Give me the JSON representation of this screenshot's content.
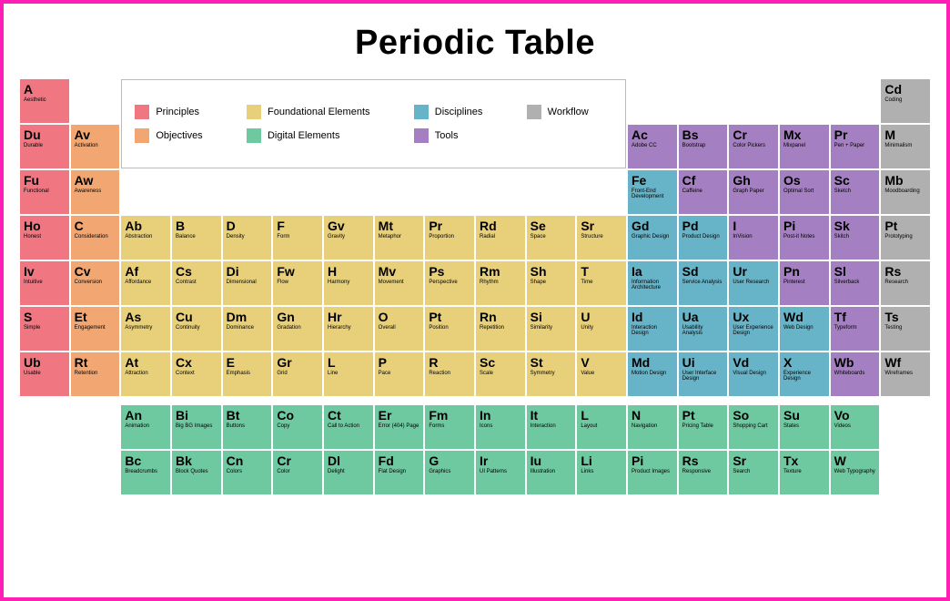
{
  "title": "Periodic Table",
  "colors": {
    "principles": "#f07782",
    "objectives": "#f2a672",
    "foundational": "#e8cf7a",
    "digital": "#6ec9a0",
    "disciplines": "#67b4c9",
    "tools": "#a47fc1",
    "workflow": "#b0b0b0",
    "border": "#ff1fb4",
    "text": "#1a1a1a"
  },
  "legend": [
    {
      "label": "Principles",
      "color_key": "principles"
    },
    {
      "label": "Foundational Elements",
      "color_key": "foundational"
    },
    {
      "label": "Disciplines",
      "color_key": "disciplines"
    },
    {
      "label": "Workflow",
      "color_key": "workflow"
    },
    {
      "label": "Objectives",
      "color_key": "objectives"
    },
    {
      "label": "Digital Elements",
      "color_key": "digital"
    },
    {
      "label": "Tools",
      "color_key": "tools"
    }
  ],
  "main_grid_rows": 7,
  "main_grid_cols": 18,
  "main": [
    {
      "r": 1,
      "c": 1,
      "sym": "A",
      "lbl": "Aesthetic",
      "g": "principles"
    },
    {
      "r": 1,
      "c": 18,
      "sym": "Cd",
      "lbl": "Coding",
      "g": "workflow"
    },
    {
      "r": 2,
      "c": 1,
      "sym": "Du",
      "lbl": "Durable",
      "g": "principles"
    },
    {
      "r": 2,
      "c": 2,
      "sym": "Av",
      "lbl": "Activation",
      "g": "objectives"
    },
    {
      "r": 2,
      "c": 13,
      "sym": "Ac",
      "lbl": "Adobe CC",
      "g": "tools"
    },
    {
      "r": 2,
      "c": 14,
      "sym": "Bs",
      "lbl": "Bootstrap",
      "g": "tools"
    },
    {
      "r": 2,
      "c": 15,
      "sym": "Cr",
      "lbl": "Color Pickers",
      "g": "tools"
    },
    {
      "r": 2,
      "c": 16,
      "sym": "Mx",
      "lbl": "Mixpanel",
      "g": "tools"
    },
    {
      "r": 2,
      "c": 17,
      "sym": "Pr",
      "lbl": "Pen + Paper",
      "g": "tools"
    },
    {
      "r": 2,
      "c": 18,
      "sym": "M",
      "lbl": "Minimalism",
      "g": "workflow"
    },
    {
      "r": 3,
      "c": 1,
      "sym": "Fu",
      "lbl": "Functional",
      "g": "principles"
    },
    {
      "r": 3,
      "c": 2,
      "sym": "Aw",
      "lbl": "Awareness",
      "g": "objectives"
    },
    {
      "r": 3,
      "c": 13,
      "sym": "Fe",
      "lbl": "Front-End Development",
      "g": "disciplines"
    },
    {
      "r": 3,
      "c": 14,
      "sym": "Cf",
      "lbl": "Caffeine",
      "g": "tools"
    },
    {
      "r": 3,
      "c": 15,
      "sym": "Gh",
      "lbl": "Graph Paper",
      "g": "tools"
    },
    {
      "r": 3,
      "c": 16,
      "sym": "Os",
      "lbl": "Optimal Sort",
      "g": "tools"
    },
    {
      "r": 3,
      "c": 17,
      "sym": "Sc",
      "lbl": "Sketch",
      "g": "tools"
    },
    {
      "r": 3,
      "c": 18,
      "sym": "Mb",
      "lbl": "Moodboarding",
      "g": "workflow"
    },
    {
      "r": 4,
      "c": 1,
      "sym": "Ho",
      "lbl": "Honest",
      "g": "principles"
    },
    {
      "r": 4,
      "c": 2,
      "sym": "C",
      "lbl": "Consideration",
      "g": "objectives"
    },
    {
      "r": 4,
      "c": 3,
      "sym": "Ab",
      "lbl": "Abstraction",
      "g": "foundational"
    },
    {
      "r": 4,
      "c": 4,
      "sym": "B",
      "lbl": "Balance",
      "g": "foundational"
    },
    {
      "r": 4,
      "c": 5,
      "sym": "D",
      "lbl": "Density",
      "g": "foundational"
    },
    {
      "r": 4,
      "c": 6,
      "sym": "F",
      "lbl": "Form",
      "g": "foundational"
    },
    {
      "r": 4,
      "c": 7,
      "sym": "Gv",
      "lbl": "Gravity",
      "g": "foundational"
    },
    {
      "r": 4,
      "c": 8,
      "sym": "Mt",
      "lbl": "Metaphor",
      "g": "foundational"
    },
    {
      "r": 4,
      "c": 9,
      "sym": "Pr",
      "lbl": "Proportion",
      "g": "foundational"
    },
    {
      "r": 4,
      "c": 10,
      "sym": "Rd",
      "lbl": "Radial",
      "g": "foundational"
    },
    {
      "r": 4,
      "c": 11,
      "sym": "Se",
      "lbl": "Space",
      "g": "foundational"
    },
    {
      "r": 4,
      "c": 12,
      "sym": "Sr",
      "lbl": "Structure",
      "g": "foundational"
    },
    {
      "r": 4,
      "c": 13,
      "sym": "Gd",
      "lbl": "Graphic Design",
      "g": "disciplines"
    },
    {
      "r": 4,
      "c": 14,
      "sym": "Pd",
      "lbl": "Product Design",
      "g": "disciplines"
    },
    {
      "r": 4,
      "c": 15,
      "sym": "I",
      "lbl": "InVision",
      "g": "tools"
    },
    {
      "r": 4,
      "c": 16,
      "sym": "Pi",
      "lbl": "Post-it Notes",
      "g": "tools"
    },
    {
      "r": 4,
      "c": 17,
      "sym": "Sk",
      "lbl": "Skitch",
      "g": "tools"
    },
    {
      "r": 4,
      "c": 18,
      "sym": "Pt",
      "lbl": "Prototyping",
      "g": "workflow"
    },
    {
      "r": 5,
      "c": 1,
      "sym": "Iv",
      "lbl": "Intuitive",
      "g": "principles"
    },
    {
      "r": 5,
      "c": 2,
      "sym": "Cv",
      "lbl": "Conversion",
      "g": "objectives"
    },
    {
      "r": 5,
      "c": 3,
      "sym": "Af",
      "lbl": "Affordance",
      "g": "foundational"
    },
    {
      "r": 5,
      "c": 4,
      "sym": "Cs",
      "lbl": "Contrast",
      "g": "foundational"
    },
    {
      "r": 5,
      "c": 5,
      "sym": "Di",
      "lbl": "Dimensional",
      "g": "foundational"
    },
    {
      "r": 5,
      "c": 6,
      "sym": "Fw",
      "lbl": "Flow",
      "g": "foundational"
    },
    {
      "r": 5,
      "c": 7,
      "sym": "H",
      "lbl": "Harmony",
      "g": "foundational"
    },
    {
      "r": 5,
      "c": 8,
      "sym": "Mv",
      "lbl": "Movement",
      "g": "foundational"
    },
    {
      "r": 5,
      "c": 9,
      "sym": "Ps",
      "lbl": "Perspective",
      "g": "foundational"
    },
    {
      "r": 5,
      "c": 10,
      "sym": "Rm",
      "lbl": "Rhythm",
      "g": "foundational"
    },
    {
      "r": 5,
      "c": 11,
      "sym": "Sh",
      "lbl": "Shape",
      "g": "foundational"
    },
    {
      "r": 5,
      "c": 12,
      "sym": "T",
      "lbl": "Time",
      "g": "foundational"
    },
    {
      "r": 5,
      "c": 13,
      "sym": "Ia",
      "lbl": "Information Architecture",
      "g": "disciplines"
    },
    {
      "r": 5,
      "c": 14,
      "sym": "Sd",
      "lbl": "Service Analysis",
      "g": "disciplines"
    },
    {
      "r": 5,
      "c": 15,
      "sym": "Ur",
      "lbl": "User Research",
      "g": "disciplines"
    },
    {
      "r": 5,
      "c": 16,
      "sym": "Pn",
      "lbl": "Pinterest",
      "g": "tools"
    },
    {
      "r": 5,
      "c": 17,
      "sym": "Sl",
      "lbl": "Silverback",
      "g": "tools"
    },
    {
      "r": 5,
      "c": 18,
      "sym": "Rs",
      "lbl": "Research",
      "g": "workflow"
    },
    {
      "r": 6,
      "c": 1,
      "sym": "S",
      "lbl": "Simple",
      "g": "principles"
    },
    {
      "r": 6,
      "c": 2,
      "sym": "Et",
      "lbl": "Engagement",
      "g": "objectives"
    },
    {
      "r": 6,
      "c": 3,
      "sym": "As",
      "lbl": "Asymmetry",
      "g": "foundational"
    },
    {
      "r": 6,
      "c": 4,
      "sym": "Cu",
      "lbl": "Continuity",
      "g": "foundational"
    },
    {
      "r": 6,
      "c": 5,
      "sym": "Dm",
      "lbl": "Dominance",
      "g": "foundational"
    },
    {
      "r": 6,
      "c": 6,
      "sym": "Gn",
      "lbl": "Gradation",
      "g": "foundational"
    },
    {
      "r": 6,
      "c": 7,
      "sym": "Hr",
      "lbl": "Hierarchy",
      "g": "foundational"
    },
    {
      "r": 6,
      "c": 8,
      "sym": "O",
      "lbl": "Overall",
      "g": "foundational"
    },
    {
      "r": 6,
      "c": 9,
      "sym": "Pt",
      "lbl": "Position",
      "g": "foundational"
    },
    {
      "r": 6,
      "c": 10,
      "sym": "Rn",
      "lbl": "Repetition",
      "g": "foundational"
    },
    {
      "r": 6,
      "c": 11,
      "sym": "Si",
      "lbl": "Similarity",
      "g": "foundational"
    },
    {
      "r": 6,
      "c": 12,
      "sym": "U",
      "lbl": "Unity",
      "g": "foundational"
    },
    {
      "r": 6,
      "c": 13,
      "sym": "Id",
      "lbl": "Interaction Design",
      "g": "disciplines"
    },
    {
      "r": 6,
      "c": 14,
      "sym": "Ua",
      "lbl": "Usability Analysis",
      "g": "disciplines"
    },
    {
      "r": 6,
      "c": 15,
      "sym": "Ux",
      "lbl": "User Experience Design",
      "g": "disciplines"
    },
    {
      "r": 6,
      "c": 16,
      "sym": "Wd",
      "lbl": "Web Design",
      "g": "disciplines"
    },
    {
      "r": 6,
      "c": 17,
      "sym": "Tf",
      "lbl": "Typeform",
      "g": "tools"
    },
    {
      "r": 6,
      "c": 18,
      "sym": "Ts",
      "lbl": "Testing",
      "g": "workflow"
    },
    {
      "r": 7,
      "c": 1,
      "sym": "Ub",
      "lbl": "Usable",
      "g": "principles"
    },
    {
      "r": 7,
      "c": 2,
      "sym": "Rt",
      "lbl": "Retention",
      "g": "objectives"
    },
    {
      "r": 7,
      "c": 3,
      "sym": "At",
      "lbl": "Attraction",
      "g": "foundational"
    },
    {
      "r": 7,
      "c": 4,
      "sym": "Cx",
      "lbl": "Context",
      "g": "foundational"
    },
    {
      "r": 7,
      "c": 5,
      "sym": "E",
      "lbl": "Emphasis",
      "g": "foundational"
    },
    {
      "r": 7,
      "c": 6,
      "sym": "Gr",
      "lbl": "Grid",
      "g": "foundational"
    },
    {
      "r": 7,
      "c": 7,
      "sym": "L",
      "lbl": "Line",
      "g": "foundational"
    },
    {
      "r": 7,
      "c": 8,
      "sym": "P",
      "lbl": "Pace",
      "g": "foundational"
    },
    {
      "r": 7,
      "c": 9,
      "sym": "R",
      "lbl": "Reaction",
      "g": "foundational"
    },
    {
      "r": 7,
      "c": 10,
      "sym": "Sc",
      "lbl": "Scale",
      "g": "foundational"
    },
    {
      "r": 7,
      "c": 11,
      "sym": "St",
      "lbl": "Symmetry",
      "g": "foundational"
    },
    {
      "r": 7,
      "c": 12,
      "sym": "V",
      "lbl": "Value",
      "g": "foundational"
    },
    {
      "r": 7,
      "c": 13,
      "sym": "Md",
      "lbl": "Motion Design",
      "g": "disciplines"
    },
    {
      "r": 7,
      "c": 14,
      "sym": "Ui",
      "lbl": "User Interface Design",
      "g": "disciplines"
    },
    {
      "r": 7,
      "c": 15,
      "sym": "Vd",
      "lbl": "Visual Design",
      "g": "disciplines"
    },
    {
      "r": 7,
      "c": 16,
      "sym": "X",
      "lbl": "Experience Design",
      "g": "disciplines"
    },
    {
      "r": 7,
      "c": 17,
      "sym": "Wb",
      "lbl": "Whiteboards",
      "g": "tools"
    },
    {
      "r": 7,
      "c": 18,
      "sym": "Wf",
      "lbl": "Wireframes",
      "g": "workflow"
    }
  ],
  "bottom_start_col": 3,
  "bottom": [
    [
      {
        "sym": "An",
        "lbl": "Animation"
      },
      {
        "sym": "Bi",
        "lbl": "Big BG Images"
      },
      {
        "sym": "Bt",
        "lbl": "Buttons"
      },
      {
        "sym": "Co",
        "lbl": "Copy"
      },
      {
        "sym": "Ct",
        "lbl": "Call to Action"
      },
      {
        "sym": "Er",
        "lbl": "Error (404) Page"
      },
      {
        "sym": "Fm",
        "lbl": "Forms"
      },
      {
        "sym": "In",
        "lbl": "Icons"
      },
      {
        "sym": "It",
        "lbl": "Interaction"
      },
      {
        "sym": "L",
        "lbl": "Layout"
      },
      {
        "sym": "N",
        "lbl": "Navigation"
      },
      {
        "sym": "Pt",
        "lbl": "Pricing Table"
      },
      {
        "sym": "So",
        "lbl": "Shopping Cart"
      },
      {
        "sym": "Su",
        "lbl": "States"
      },
      {
        "sym": "Vo",
        "lbl": "Videos"
      }
    ],
    [
      {
        "sym": "Bc",
        "lbl": "Breadcrumbs"
      },
      {
        "sym": "Bk",
        "lbl": "Block Quotes"
      },
      {
        "sym": "Cn",
        "lbl": "Colors"
      },
      {
        "sym": "Cr",
        "lbl": "Color"
      },
      {
        "sym": "Dl",
        "lbl": "Delight"
      },
      {
        "sym": "Fd",
        "lbl": "Flat Design"
      },
      {
        "sym": "G",
        "lbl": "Graphics"
      },
      {
        "sym": "Ir",
        "lbl": "UI Patterns"
      },
      {
        "sym": "Iu",
        "lbl": "Illustration"
      },
      {
        "sym": "Li",
        "lbl": "Links"
      },
      {
        "sym": "Pi",
        "lbl": "Product Images"
      },
      {
        "sym": "Rs",
        "lbl": "Responsive"
      },
      {
        "sym": "Sr",
        "lbl": "Search"
      },
      {
        "sym": "Tx",
        "lbl": "Texture"
      },
      {
        "sym": "W",
        "lbl": "Web Typography"
      }
    ]
  ]
}
